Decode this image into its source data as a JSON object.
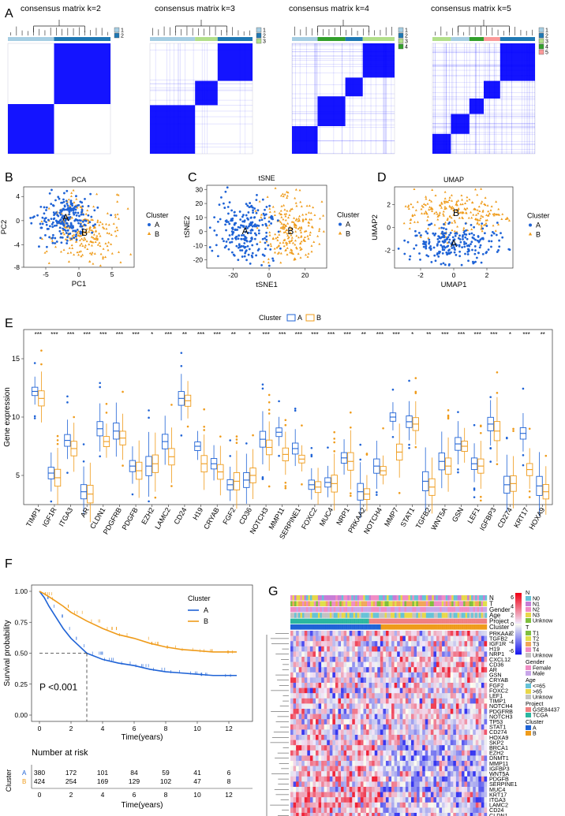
{
  "panel_labels": {
    "A": "A",
    "B": "B",
    "C": "C",
    "D": "D",
    "E": "E",
    "F": "F",
    "G": "G"
  },
  "consensus": [
    {
      "title": "consensus matrix k=2",
      "k": 2,
      "legend": [
        "1",
        "2"
      ],
      "colors": [
        "#a6cee3",
        "#1f78b4"
      ]
    },
    {
      "title": "consensus matrix k=3",
      "k": 3,
      "legend": [
        "1",
        "2",
        "3"
      ],
      "colors": [
        "#a6cee3",
        "#1f78b4",
        "#b2df8a"
      ]
    },
    {
      "title": "consensus matrix k=4",
      "k": 4,
      "legend": [
        "1",
        "2",
        "3",
        "4"
      ],
      "colors": [
        "#a6cee3",
        "#1f78b4",
        "#b2df8a",
        "#33a02c"
      ]
    },
    {
      "title": "consensus matrix k=5",
      "k": 5,
      "legend": [
        "1",
        "2",
        "3",
        "4",
        "5"
      ],
      "colors": [
        "#a6cee3",
        "#1f78b4",
        "#b2df8a",
        "#33a02c",
        "#fb9a99"
      ]
    }
  ],
  "colors": {
    "A": "#1f63d6",
    "B": "#ef9b1a",
    "blue": "#0000ff"
  },
  "scatter": [
    {
      "title": "PCA",
      "xlabel": "PC1",
      "ylabel": "PC2",
      "xticks": [
        "-5",
        "0",
        "5"
      ],
      "yticks": [
        "4",
        "0",
        "-4",
        "-8"
      ],
      "legend_title": "Cluster",
      "legend": [
        "A",
        "B"
      ],
      "center_labels": [
        "A",
        "B"
      ]
    },
    {
      "title": "tSNE",
      "xlabel": "tSNE1",
      "ylabel": "tSNE2",
      "xticks": [
        "-20",
        "0",
        "20"
      ],
      "yticks": [
        "30",
        "20",
        "10",
        "0",
        "-10",
        "-20"
      ],
      "legend_title": "Cluster",
      "legend": [
        "A",
        "B"
      ],
      "center_labels": [
        "A",
        "B"
      ]
    },
    {
      "title": "UMAP",
      "xlabel": "UMAP1",
      "ylabel": "UMAP2",
      "xticks": [
        "-2",
        "0",
        "2"
      ],
      "yticks": [
        "2",
        "0",
        "-2"
      ],
      "legend_title": "Cluster",
      "legend": [
        "A",
        "B"
      ],
      "center_labels": [
        "A",
        "B"
      ]
    }
  ],
  "boxplot": {
    "legend_title": "Cluster",
    "legend": [
      "A",
      "B"
    ],
    "ylabel": "Gene expression",
    "yticks": [
      "15",
      "10",
      "5"
    ],
    "genes": [
      "TIMP1",
      "IGF1R",
      "ITGA3",
      "AR",
      "CLDN1",
      "PDGFRB",
      "PDGFB",
      "EZH2",
      "LAMC2",
      "CD24",
      "H19",
      "CRYAB",
      "FGF2",
      "CD36",
      "NOTCH3",
      "MMP11",
      "SERPINE1",
      "FOXC2",
      "MUC4",
      "NRP1",
      "PRKAA2",
      "NOTCH4",
      "MMP7",
      "STAT1",
      "TGFB2",
      "WNT5A",
      "GSN",
      "LEF1",
      "IGFBP3",
      "CD274",
      "KRT17",
      "HOXA9"
    ],
    "sig": [
      "***",
      "***",
      "***",
      "***",
      "***",
      "***",
      "***",
      "*",
      "***",
      "**",
      "***",
      "***",
      "**",
      "*",
      "***",
      "***",
      "***",
      "***",
      "***",
      "***",
      "**",
      "***",
      "***",
      "*",
      "**",
      "***",
      "***",
      "***",
      "***",
      "*",
      "***",
      "**"
    ],
    "medianA": [
      12.2,
      5.2,
      8.0,
      3.6,
      9.0,
      8.8,
      5.8,
      5.8,
      7.9,
      11.6,
      7.5,
      6.0,
      4.2,
      4.6,
      8.1,
      8.7,
      7.3,
      4.2,
      4.4,
      6.5,
      3.6,
      5.8,
      10.0,
      9.6,
      4.5,
      6.2,
      7.7,
      6.0,
      9.4,
      4.2,
      8.6,
      4.1
    ],
    "medianB": [
      11.6,
      4.8,
      7.3,
      3.4,
      7.9,
      8.2,
      5.4,
      6.0,
      6.6,
      11.4,
      6.0,
      5.3,
      4.5,
      5.0,
      7.4,
      6.8,
      6.4,
      4.0,
      4.3,
      6.2,
      3.4,
      5.4,
      7.0,
      9.4,
      4.0,
      5.8,
      7.5,
      5.8,
      8.8,
      4.3,
      5.5,
      3.6
    ]
  },
  "survival": {
    "ylabel": "Survival probability",
    "xlabel": "Time(years)",
    "xticks": [
      "0",
      "2",
      "4",
      "6",
      "8",
      "10",
      "12"
    ],
    "yticks": [
      "1.00",
      "0.75",
      "0.50",
      "0.25",
      "0.00"
    ],
    "legend_title": "Cluster",
    "legend": [
      "A",
      "B"
    ],
    "pvalue": "P <0.001",
    "risk_title": "Number at risk",
    "risk_ylabel": "Cluster",
    "risk": {
      "A": [
        "380",
        "172",
        "101",
        "84",
        "59",
        "41",
        "6"
      ],
      "B": [
        "424",
        "254",
        "169",
        "129",
        "102",
        "47",
        "8"
      ]
    }
  },
  "heatmap": {
    "anno_labels": [
      "N",
      "T",
      "Gender",
      "Age",
      "Project",
      "Cluster"
    ],
    "genes": [
      "PRKAA2",
      "TGFB2",
      "IGF1R",
      "H19",
      "NRP1",
      "CXCL12",
      "CD36",
      "AR",
      "GSN",
      "CRYAB",
      "FGF2",
      "FOXC2",
      "LEF1",
      "TIMP1",
      "NOTCH4",
      "PDGFRB",
      "NOTCH3",
      "TP53",
      "STAT1",
      "CD274",
      "HOXA9",
      "SKP2",
      "BRCA1",
      "EZH2",
      "DNMT1",
      "MMP11",
      "IGFBP3",
      "WNT5A",
      "PDGFB",
      "SERPINE1",
      "MUC4",
      "KRT17",
      "ITGA3",
      "LAMC2",
      "CD24",
      "CLDN1",
      "MMP7"
    ],
    "scale_ticks": [
      "6",
      "4",
      "2",
      "0",
      "-2",
      "-4",
      "-6"
    ],
    "legend_groups": [
      {
        "title": "N",
        "items": [
          {
            "label": "N0",
            "color": "#66c2d7"
          },
          {
            "label": "N1",
            "color": "#c77dd6"
          },
          {
            "label": "N2",
            "color": "#f08cc4"
          },
          {
            "label": "N3",
            "color": "#e8d64a"
          },
          {
            "label": "Unknow",
            "color": "#7fbf3f"
          }
        ]
      },
      {
        "title": "T",
        "items": [
          {
            "label": "T1",
            "color": "#7fbf3f"
          },
          {
            "label": "T2",
            "color": "#e0e04a"
          },
          {
            "label": "T3",
            "color": "#f2a65a"
          },
          {
            "label": "T4",
            "color": "#f08cc4"
          },
          {
            "label": "Unknow",
            "color": "#c3c3c3"
          }
        ]
      },
      {
        "title": "Gender",
        "items": [
          {
            "label": "Female",
            "color": "#f08cc4"
          },
          {
            "label": "Male",
            "color": "#c7a5e8"
          }
        ]
      },
      {
        "title": "Age",
        "items": [
          {
            "label": "<=65",
            "color": "#66c2d7"
          },
          {
            "label": ">65",
            "color": "#e8d64a"
          },
          {
            "label": "Unknow",
            "color": "#c3c3c3"
          }
        ]
      },
      {
        "title": "Project",
        "items": [
          {
            "label": "GSE84437",
            "color": "#f08080"
          },
          {
            "label": "TCGA",
            "color": "#2bb6a0"
          }
        ]
      },
      {
        "title": "Cluster",
        "items": [
          {
            "label": "A",
            "color": "#1f63d6"
          },
          {
            "label": "B",
            "color": "#ef9b1a"
          }
        ]
      }
    ]
  }
}
